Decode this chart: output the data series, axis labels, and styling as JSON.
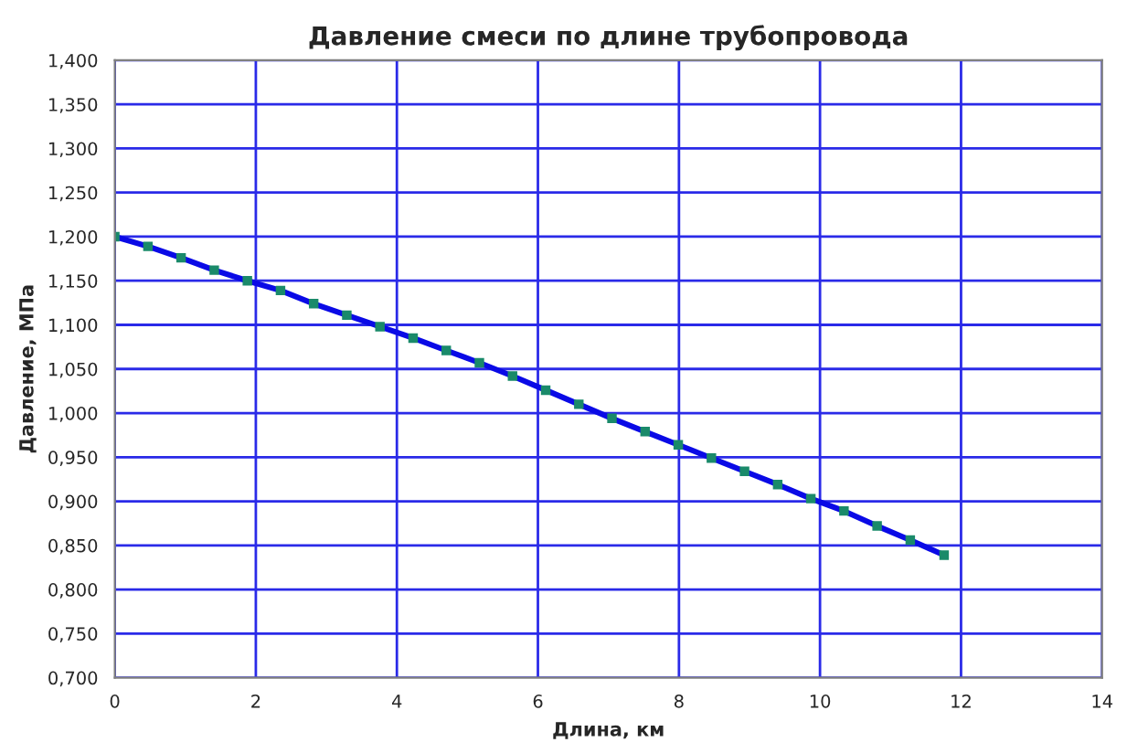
{
  "chart_data": {
    "type": "line",
    "title": "Давление смеси по длине трубопровода",
    "xlabel": "Длина, км",
    "ylabel": "Давление, МПа",
    "x": [
      0,
      0.47,
      0.94,
      1.41,
      1.88,
      2.35,
      2.82,
      3.29,
      3.76,
      4.23,
      4.7,
      5.17,
      5.64,
      6.11,
      6.58,
      7.05,
      7.52,
      7.99,
      8.46,
      8.93,
      9.4,
      9.87,
      10.34,
      10.81,
      11.28,
      11.76
    ],
    "series": [
      {
        "color": "#0a0ae6",
        "values": [
          1.2,
          1.189,
          1.176,
          1.162,
          1.15,
          1.139,
          1.124,
          1.111,
          1.098,
          1.085,
          1.071,
          1.057,
          1.042,
          1.026,
          1.01,
          0.994,
          0.979,
          0.964,
          0.949,
          0.934,
          0.919,
          0.903,
          0.889,
          0.872,
          0.856,
          0.839
        ]
      }
    ],
    "xlim": [
      0,
      14
    ],
    "xticks": [
      0,
      2,
      4,
      6,
      8,
      10,
      12,
      14
    ],
    "ylim": [
      0.7,
      1.4
    ],
    "yticks": [
      {
        "value": 0.7,
        "label": "0,700"
      },
      {
        "value": 0.75,
        "label": "0,750"
      },
      {
        "value": 0.8,
        "label": "0,800"
      },
      {
        "value": 0.85,
        "label": "0,850"
      },
      {
        "value": 0.9,
        "label": "0,900"
      },
      {
        "value": 0.95,
        "label": "0,950"
      },
      {
        "value": 1.0,
        "label": "1,000"
      },
      {
        "value": 1.05,
        "label": "1,050"
      },
      {
        "value": 1.1,
        "label": "1,100"
      },
      {
        "value": 1.15,
        "label": "1,150"
      },
      {
        "value": 1.2,
        "label": "1,200"
      },
      {
        "value": 1.25,
        "label": "1,250"
      },
      {
        "value": 1.3,
        "label": "1,300"
      },
      {
        "value": 1.35,
        "label": "1,350"
      },
      {
        "value": 1.4,
        "label": "1,400"
      }
    ],
    "grid": true,
    "marker": "square",
    "line_style": "solid",
    "legend": false
  }
}
